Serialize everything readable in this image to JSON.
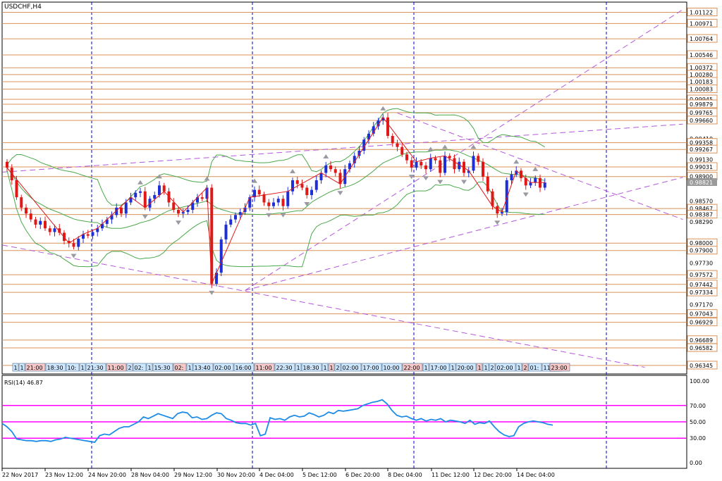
{
  "chart_data": [
    {
      "type": "candlestick",
      "title": "USDCHF,H4",
      "ylim": [
        0.9623,
        1.0126
      ],
      "price_levels": [
        1.01122,
        1.00971,
        1.00764,
        1.00546,
        1.00372,
        1.0028,
        1.00183,
        1.00083,
        0.99945,
        0.99879,
        0.99765,
        0.9966,
        0.99358,
        0.99267,
        0.99031,
        0.989,
        0.98467,
        0.98387,
        0.98,
        0.979,
        0.97572,
        0.97442,
        0.97334,
        0.97043,
        0.96929,
        0.96689,
        0.96582,
        0.96345
      ],
      "axis_labels": [
        "1.01122",
        "1.00971",
        "1.00764",
        "1.00546",
        "1.00372",
        "1.00280",
        "1.00183",
        "1.00083",
        "0.99945",
        "0.99879",
        "0.99765",
        "0.99660",
        "0.99410",
        "0.99358",
        "0.99267",
        "0.99130",
        "0.99031",
        "0.98900",
        "0.98821",
        "0.98570",
        "0.98467",
        "0.98387",
        "0.98290",
        "0.98000",
        "0.97900",
        "0.97730",
        "0.97572",
        "0.97442",
        "0.97334",
        "0.97170",
        "0.97043",
        "0.96929",
        "0.96689",
        "0.96582",
        "0.96345"
      ],
      "current_price": "0.98821",
      "close": [
        0.9902,
        0.9885,
        0.9862,
        0.9848,
        0.984,
        0.9832,
        0.9825,
        0.983,
        0.982,
        0.9815,
        0.982,
        0.9814,
        0.9803,
        0.98,
        0.9795,
        0.9806,
        0.9812,
        0.981,
        0.9815,
        0.982,
        0.9826,
        0.9832,
        0.9838,
        0.9848,
        0.984,
        0.9855,
        0.9862,
        0.9868,
        0.987,
        0.9848,
        0.986,
        0.9865,
        0.9878,
        0.987,
        0.9855,
        0.9845,
        0.984,
        0.9842,
        0.9845,
        0.9855,
        0.9862,
        0.986,
        0.9875,
        0.9745,
        0.976,
        0.9805,
        0.9825,
        0.9832,
        0.9838,
        0.9842,
        0.9848,
        0.9862,
        0.9872,
        0.9866,
        0.9855,
        0.985,
        0.9855,
        0.986,
        0.985,
        0.987,
        0.9885,
        0.988,
        0.9875,
        0.9865,
        0.9872,
        0.9885,
        0.9895,
        0.9905,
        0.99,
        0.9895,
        0.988,
        0.99,
        0.9908,
        0.9918,
        0.9925,
        0.994,
        0.9948,
        0.9958,
        0.9966,
        0.997,
        0.9945,
        0.9935,
        0.993,
        0.992,
        0.9912,
        0.9902,
        0.991,
        0.9905,
        0.99,
        0.9915,
        0.9912,
        0.9895,
        0.9918,
        0.9915,
        0.99,
        0.991,
        0.9895,
        0.9898,
        0.9918,
        0.991,
        0.989,
        0.987,
        0.985,
        0.984,
        0.9842,
        0.9885,
        0.9893,
        0.9898,
        0.9888,
        0.9878,
        0.9882,
        0.9888,
        0.9875,
        0.9882
      ],
      "rsi": {
        "label": "RSI(14) 46.87",
        "ylim": [
          0,
          100
        ],
        "ticks": [
          100,
          70,
          50,
          30,
          0
        ],
        "tick_labels": [
          "100.00",
          "70.00",
          "50.00",
          "30.00",
          "0.00"
        ],
        "levels": [
          70,
          50,
          30
        ],
        "values": [
          48,
          44,
          38,
          29,
          28,
          27,
          27,
          26,
          27,
          27,
          26,
          28,
          29,
          31,
          30,
          29,
          28,
          27,
          26,
          25,
          33,
          35,
          34,
          38,
          42,
          44,
          44,
          47,
          50,
          56,
          54,
          57,
          60,
          58,
          56,
          54,
          60,
          62,
          61,
          55,
          56,
          53,
          54,
          58,
          61,
          60,
          54,
          52,
          49,
          48,
          48,
          46,
          48,
          33,
          35,
          55,
          53,
          54,
          52,
          56,
          58,
          56,
          57,
          61,
          59,
          56,
          58,
          62,
          60,
          64,
          63,
          64,
          65,
          66,
          70,
          72,
          74,
          75,
          77,
          72,
          64,
          58,
          56,
          57,
          54,
          52,
          54,
          51,
          53,
          52,
          54,
          50,
          52,
          51,
          50,
          48,
          52,
          47,
          49,
          48,
          51,
          44,
          38,
          34,
          32,
          33,
          44,
          48,
          50,
          51,
          50,
          49,
          47,
          46
        ]
      },
      "x_tick_labels": [
        "22 Nov 2017",
        "23 Nov 12:00",
        "24 Nov 20:00",
        "28 Nov 04:00",
        "29 Nov 12:00",
        "30 Nov 20:00",
        "4 Dec 04:00",
        "5 Dec 12:00",
        "6 Dec 20:00",
        "8 Dec 04:00",
        "11 Dec 12:00",
        "12 Dec 20:00",
        "14 Dec 04:00"
      ],
      "session_labels": [
        "1",
        "1",
        "21:00",
        "18:30",
        "10:",
        "1",
        "21:30",
        "11:00",
        "2",
        "02:",
        "1",
        "15:30",
        "02:",
        "1",
        "13:40",
        "02:00",
        "16:00",
        "11:00",
        "22:30",
        "1",
        "18:30",
        "1",
        "1",
        "2",
        "02:00",
        "17:00",
        "10:00",
        "22:00",
        "1",
        "17:00",
        "1",
        "20:00",
        "1",
        "1",
        "2",
        "02:00",
        "1",
        "2",
        "01:",
        "11:00",
        "00",
        "1",
        "23:00"
      ],
      "colors": {
        "bull": "#1f2fd6",
        "bear": "#e01818",
        "level": "#d8935a",
        "trend": "#b45adb",
        "band": "#4aa84a",
        "grid": "#0000c8",
        "rsi": "#1e8ce6",
        "rsi_level": "#ff00ff"
      }
    }
  ]
}
